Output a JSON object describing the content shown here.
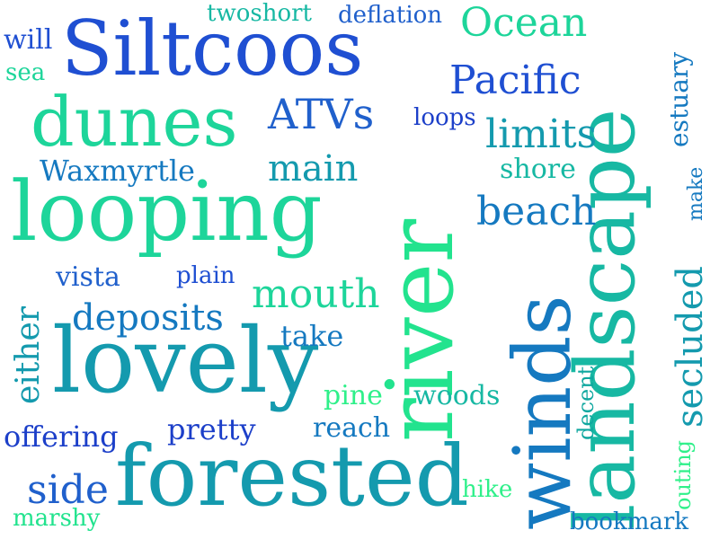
{
  "words": {
    "siltcoos": "Siltcoos",
    "dunes": "dunes",
    "looping": "looping",
    "lovely": "lovely",
    "forested": "forested",
    "river": "river",
    "landscape": "landscape",
    "winds": "winds",
    "twoshort": "twoshort",
    "deflation": "deflation",
    "ocean": "Ocean",
    "estuary": "estuary",
    "will": "will",
    "sea": "sea",
    "pacific": "Pacific",
    "atvs": "ATVs",
    "loops": "loops",
    "limits": "limits",
    "waxmyrtle": "Waxmyrtle",
    "main": "main",
    "shore": "shore",
    "make": "make",
    "beach": "beach",
    "vista": "vista",
    "plain": "plain",
    "mouth": "mouth",
    "either": "either",
    "deposits": "deposits",
    "secluded": "secluded",
    "take": "take",
    "pine": "pine",
    "woods": "woods",
    "decent": "decent",
    "offering": "offering",
    "pretty": "pretty",
    "reach": "reach",
    "outing": "outing",
    "side": "side",
    "hike": "hike",
    "marshy": "marshy",
    "bookmark": "bookmark"
  }
}
